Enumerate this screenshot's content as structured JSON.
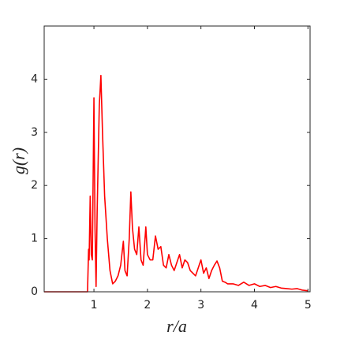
{
  "chart_data": {
    "type": "line",
    "xlabel": "r/a",
    "ylabel": "g(r)",
    "x": [
      0.07,
      0.88,
      0.9,
      0.91,
      0.93,
      0.95,
      0.97,
      1.0,
      1.02,
      1.04,
      1.06,
      1.1,
      1.13,
      1.16,
      1.2,
      1.25,
      1.3,
      1.35,
      1.4,
      1.45,
      1.5,
      1.55,
      1.58,
      1.62,
      1.66,
      1.69,
      1.72,
      1.76,
      1.8,
      1.84,
      1.88,
      1.92,
      1.97,
      2.0,
      2.05,
      2.1,
      2.15,
      2.2,
      2.25,
      2.3,
      2.35,
      2.4,
      2.45,
      2.5,
      2.55,
      2.6,
      2.65,
      2.7,
      2.75,
      2.8,
      2.85,
      2.9,
      2.95,
      3.0,
      3.05,
      3.1,
      3.15,
      3.2,
      3.25,
      3.3,
      3.35,
      3.4,
      3.45,
      3.5,
      3.6,
      3.7,
      3.8,
      3.9,
      4.0,
      4.1,
      4.2,
      4.3,
      4.4,
      4.5,
      4.6,
      4.7,
      4.8,
      4.9,
      5.0
    ],
    "series": [
      {
        "color": "#ff0000",
        "values": [
          0,
          0,
          0.8,
          0.6,
          1.8,
          0.7,
          0.6,
          3.65,
          1.2,
          0.1,
          1.5,
          3.5,
          4.07,
          3.0,
          1.8,
          1.0,
          0.4,
          0.15,
          0.2,
          0.3,
          0.5,
          0.95,
          0.4,
          0.3,
          1.0,
          1.88,
          1.2,
          0.8,
          0.7,
          1.22,
          0.6,
          0.5,
          1.22,
          0.7,
          0.6,
          0.6,
          1.05,
          0.8,
          0.85,
          0.5,
          0.45,
          0.7,
          0.5,
          0.4,
          0.55,
          0.7,
          0.45,
          0.6,
          0.55,
          0.4,
          0.35,
          0.3,
          0.45,
          0.6,
          0.35,
          0.45,
          0.25,
          0.4,
          0.5,
          0.58,
          0.45,
          0.2,
          0.18,
          0.15,
          0.15,
          0.12,
          0.18,
          0.12,
          0.15,
          0.1,
          0.12,
          0.08,
          0.1,
          0.07,
          0.06,
          0.05,
          0.06,
          0.03,
          0.02
        ]
      }
    ],
    "xlim": [
      0.07,
      5.04
    ],
    "ylim": [
      0,
      5
    ],
    "xticks": [
      1,
      2,
      3,
      4,
      5
    ],
    "yticks": [
      0,
      1,
      2,
      3,
      4
    ]
  }
}
